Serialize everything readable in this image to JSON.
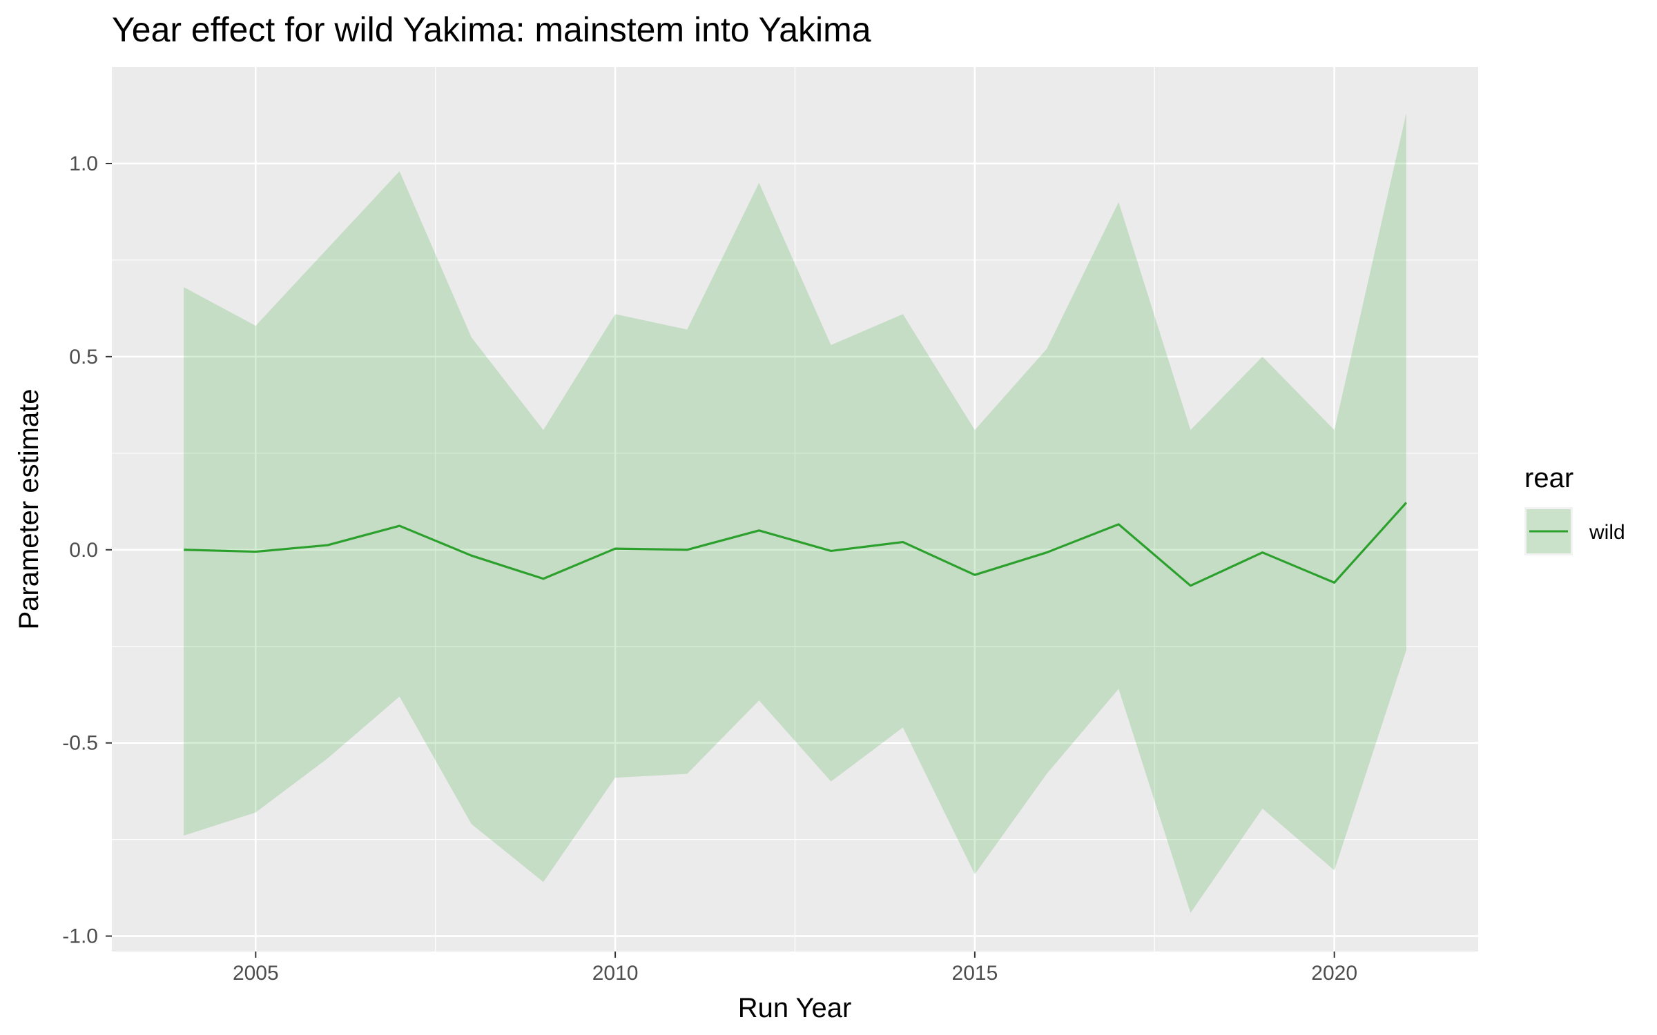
{
  "chart_data": {
    "type": "line",
    "title": "Year effect for wild Yakima: mainstem into Yakima",
    "xlabel": "Run Year",
    "ylabel": "Parameter estimate",
    "xlim": [
      2003,
      2022
    ],
    "ylim": [
      -1.04,
      1.25
    ],
    "x_ticks": [
      2005,
      2010,
      2015,
      2020
    ],
    "y_ticks": [
      1.0,
      0.5,
      0.0,
      -0.5,
      -1.0
    ],
    "y_tick_labels": [
      "1.0",
      "0.5",
      "0.0",
      "-0.5",
      "-1.0"
    ],
    "grid": true,
    "legend": {
      "title": "rear",
      "position": "right"
    },
    "series": [
      {
        "name": "wild",
        "color": "#2ca02c",
        "ribbon_color": "#2ca02c",
        "x": [
          2004,
          2005,
          2006,
          2007,
          2008,
          2009,
          2010,
          2011,
          2012,
          2013,
          2014,
          2015,
          2016,
          2017,
          2018,
          2019,
          2020,
          2021
        ],
        "y": [
          0.0,
          -0.005,
          0.012,
          0.062,
          -0.015,
          -0.075,
          0.003,
          0.0,
          0.05,
          -0.003,
          0.02,
          -0.065,
          -0.007,
          0.066,
          -0.093,
          -0.007,
          -0.085,
          0.122
        ],
        "lower": [
          -0.74,
          -0.68,
          -0.54,
          -0.38,
          -0.71,
          -0.86,
          -0.59,
          -0.58,
          -0.39,
          -0.6,
          -0.46,
          -0.84,
          -0.58,
          -0.36,
          -0.94,
          -0.67,
          -0.83,
          -0.26
        ],
        "upper": [
          0.68,
          0.58,
          0.78,
          0.98,
          0.55,
          0.31,
          0.61,
          0.57,
          0.95,
          0.53,
          0.61,
          0.31,
          0.52,
          0.9,
          0.31,
          0.5,
          0.31,
          1.13
        ]
      }
    ]
  }
}
